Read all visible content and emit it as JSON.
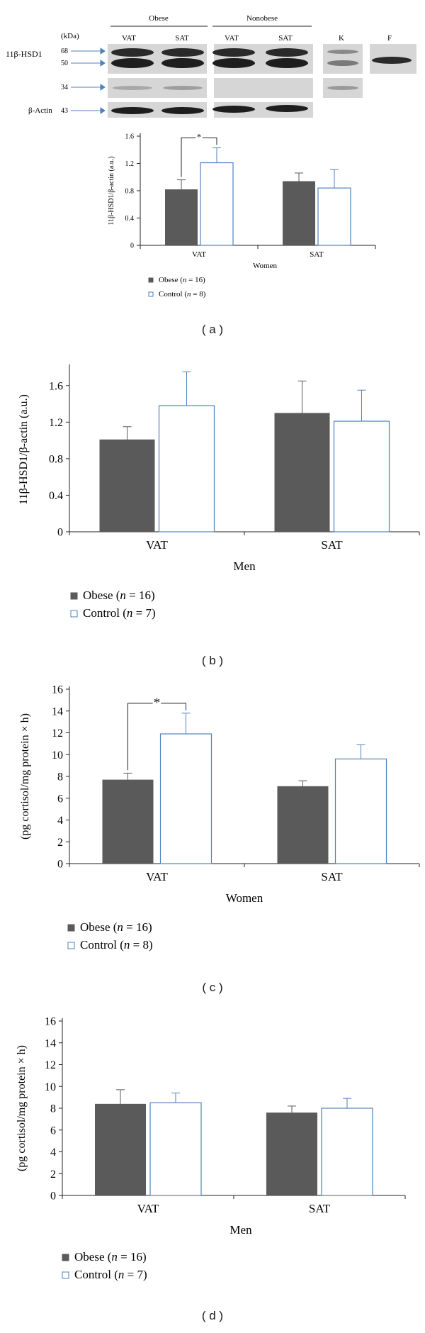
{
  "panel_labels": {
    "a": "( a )",
    "b": "( b )",
    "c": "( c )",
    "d": "( d )"
  },
  "western_blot": {
    "group_headers": [
      "Obese",
      "Nonobese"
    ],
    "lanes": [
      "VAT",
      "SAT",
      "VAT",
      "SAT",
      "K",
      "F"
    ],
    "kda_label": "(kDa)",
    "protein_label": "11β-HSD1",
    "actin_label": "β-Actin",
    "markers": [
      "68",
      "50",
      "34",
      "43"
    ]
  },
  "legend_obese": "Obese",
  "legend_control": "Control",
  "colors": {
    "obese": "#5a5a5a",
    "control_stroke": "#4f81bd",
    "axis": "#222222"
  },
  "chart_data": [
    {
      "id": "a",
      "type": "bar",
      "categories": [
        "VAT",
        "SAT"
      ],
      "series": [
        {
          "name": "Obese",
          "values": [
            0.82,
            0.94
          ],
          "errors": [
            0.14,
            0.12
          ]
        },
        {
          "name": "Control",
          "values": [
            1.21,
            0.84
          ],
          "errors": [
            0.22,
            0.27
          ]
        }
      ],
      "ylabel": "11β-HSD1/β-actin (a.u.)",
      "xlabel": "Women",
      "ylim": [
        0,
        1.6
      ],
      "yticks": [
        0,
        0.4,
        0.8,
        1.2,
        1.6
      ],
      "ytick_labels": [
        "0",
        "0.4",
        "0.8",
        "1.2",
        "1.6"
      ],
      "n_obese": "16",
      "n_control": "8",
      "significance": {
        "category": "VAT",
        "label": "*"
      }
    },
    {
      "id": "b",
      "type": "bar",
      "categories": [
        "VAT",
        "SAT"
      ],
      "series": [
        {
          "name": "Obese",
          "values": [
            1.01,
            1.3
          ],
          "errors": [
            0.14,
            0.35
          ]
        },
        {
          "name": "Control",
          "values": [
            1.38,
            1.21
          ],
          "errors": [
            0.37,
            0.34
          ]
        }
      ],
      "ylabel": "11β-HSD1/β-actin (a.u.)",
      "xlabel": "Men",
      "ylim": [
        0,
        1.8
      ],
      "yticks": [
        0,
        0.4,
        0.8,
        1.2,
        1.6
      ],
      "ytick_labels": [
        "0",
        "0.4",
        "0.8",
        "1.2",
        "1.6"
      ],
      "n_obese": "16",
      "n_control": "7"
    },
    {
      "id": "c",
      "type": "bar",
      "categories": [
        "VAT",
        "SAT"
      ],
      "series": [
        {
          "name": "Obese",
          "values": [
            7.7,
            7.1
          ],
          "errors": [
            0.6,
            0.5
          ]
        },
        {
          "name": "Control",
          "values": [
            11.9,
            9.6
          ],
          "errors": [
            1.9,
            1.3
          ]
        }
      ],
      "ylabel": "(pg cortisol/mg protein × h)",
      "xlabel": "Women",
      "ylim": [
        0,
        16
      ],
      "yticks": [
        0,
        2,
        4,
        6,
        8,
        10,
        12,
        14,
        16
      ],
      "ytick_labels": [
        "0",
        "2",
        "4",
        "6",
        "8",
        "10",
        "12",
        "14",
        "16"
      ],
      "n_obese": "16",
      "n_control": "8",
      "significance": {
        "category": "VAT",
        "label": "*"
      }
    },
    {
      "id": "d",
      "type": "bar",
      "categories": [
        "VAT",
        "SAT"
      ],
      "series": [
        {
          "name": "Obese",
          "values": [
            8.4,
            7.6
          ],
          "errors": [
            1.3,
            0.6
          ]
        },
        {
          "name": "Control",
          "values": [
            8.5,
            8.0
          ],
          "errors": [
            0.9,
            0.9
          ]
        }
      ],
      "ylabel": "(pg cortisol/mg protein × h)",
      "xlabel": "Men",
      "ylim": [
        0,
        16
      ],
      "yticks": [
        0,
        2,
        4,
        6,
        8,
        10,
        12,
        14,
        16
      ],
      "ytick_labels": [
        "0",
        "2",
        "4",
        "6",
        "8",
        "10",
        "12",
        "14",
        "16"
      ],
      "n_obese": "16",
      "n_control": "7"
    }
  ]
}
